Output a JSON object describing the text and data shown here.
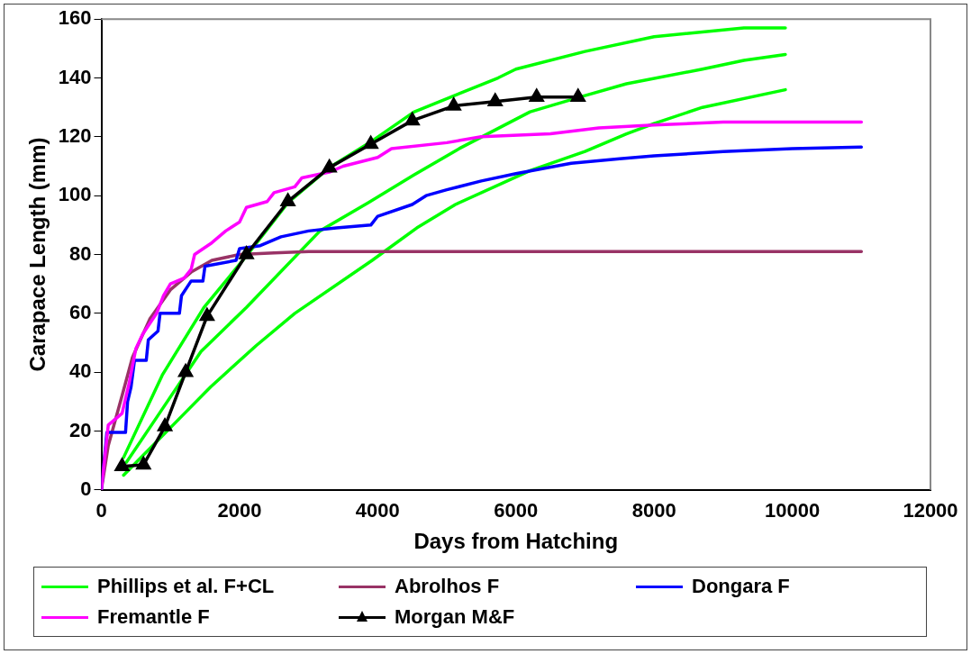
{
  "chart_data": {
    "type": "line",
    "xlabel": "Days from Hatching",
    "ylabel": "Carapace Length (mm)",
    "xlim": [
      0,
      12000
    ],
    "xticks": [
      0,
      2000,
      4000,
      6000,
      8000,
      10000,
      12000
    ],
    "ylim": [
      0,
      160
    ],
    "yticks": [
      0,
      20,
      40,
      60,
      80,
      100,
      120,
      140,
      160
    ],
    "grid": false,
    "legend": "bottom",
    "marker": "none",
    "line_style": "solid",
    "series": [
      {
        "name": "Phillips et al. F+CL",
        "color": "#00ff00",
        "x": [
          322,
          882,
          1484,
          2100,
          2702,
          3305,
          3920,
          4523,
          5741,
          6000,
          7000,
          8000,
          9300,
          9900
        ],
        "values": [
          11,
          39,
          62,
          79.5,
          97.6,
          109.6,
          118.6,
          128.4,
          140,
          143,
          149,
          154,
          157,
          157
        ]
      },
      {
        "color": "#00ff00",
        "x": [
          364,
          840,
          1442,
          2100,
          3164,
          3864,
          4523,
          5181,
          6206,
          7000,
          7600,
          8700,
          9300,
          9900
        ],
        "values": [
          9.4,
          26,
          47,
          62,
          88,
          97.6,
          107,
          116,
          128.5,
          134,
          138,
          143,
          146,
          148
        ]
      },
      {
        "color": "#00ff00",
        "x": [
          322,
          1204,
          1582,
          2240,
          2800,
          3920,
          4565,
          5125,
          6206,
          7000,
          7600,
          8000,
          8700,
          9900
        ],
        "values": [
          5,
          26,
          35,
          49,
          60,
          78,
          89,
          97,
          108.5,
          115,
          121,
          124.5,
          130,
          136
        ]
      },
      {
        "name": "Abrolhos F",
        "color": "#993366",
        "x": [
          0,
          100,
          300,
          450,
          700,
          1000,
          1300,
          1600,
          2000,
          2500,
          3000,
          11000
        ],
        "values": [
          0,
          15,
          32,
          45,
          58,
          68,
          74,
          78,
          80,
          80.5,
          81,
          81
        ]
      },
      {
        "name": "Dongara F",
        "color": "#0000ff",
        "x": [
          0,
          80,
          350,
          380,
          430,
          480,
          650,
          680,
          820,
          850,
          1130,
          1160,
          1300,
          1470,
          1500,
          1950,
          2000,
          2300,
          2600,
          3000,
          3400,
          3900,
          4000,
          4500,
          4700,
          5000,
          5500,
          6000,
          6800,
          7500,
          8000,
          9000,
          10000,
          11000
        ],
        "values": [
          0,
          19.5,
          19.5,
          30,
          35,
          44,
          44,
          51,
          54,
          60,
          60,
          66,
          71,
          71,
          76,
          78,
          82,
          83,
          86,
          88,
          89,
          90,
          93,
          97,
          100,
          102,
          105,
          107.5,
          111,
          112.5,
          113.5,
          115,
          116,
          116.5
        ]
      },
      {
        "name": "Fremantle F",
        "color": "#ff00ff",
        "x": [
          0,
          100,
          300,
          400,
          500,
          600,
          800,
          900,
          1000,
          1200,
          1300,
          1350,
          1600,
          1800,
          2000,
          2100,
          2400,
          2500,
          2800,
          2900,
          3300,
          3500,
          4000,
          4200,
          5000,
          5500,
          6500,
          7200,
          8000,
          9000,
          11000
        ],
        "values": [
          0,
          22,
          26,
          36,
          48,
          53,
          60,
          66,
          70,
          72,
          75,
          80,
          84,
          88,
          91,
          96,
          98,
          101,
          103,
          106,
          108,
          110,
          113,
          116,
          118,
          120,
          121,
          123,
          124,
          125,
          125
        ]
      },
      {
        "name": "Morgan M&F",
        "color": "#000000",
        "marker": "triangle",
        "x": [
          300,
          610,
          920,
          1220,
          1530,
          2100,
          2700,
          3300,
          3900,
          4500,
          5100,
          5700,
          6300,
          6900
        ],
        "values": [
          8,
          8.5,
          21.5,
          40,
          59,
          80,
          98,
          109.5,
          117.5,
          125.5,
          130.5,
          132,
          133.5,
          133.5
        ]
      }
    ]
  }
}
